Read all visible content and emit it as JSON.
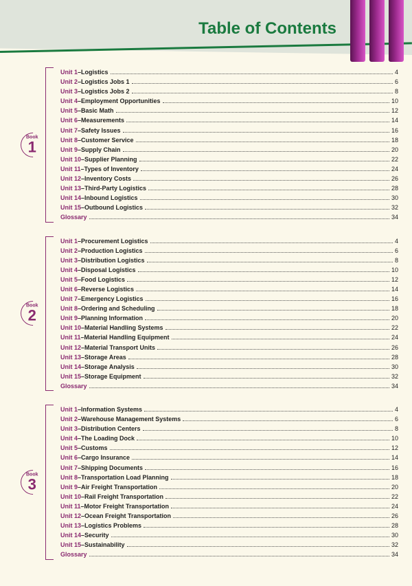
{
  "title": "Table of Contents",
  "colors": {
    "header_bg": "#dfe4db",
    "page_bg": "#fbf8ea",
    "accent_green": "#1a7a3f",
    "accent_purple": "#8a2a70",
    "bar_gradient": [
      "#5b1452",
      "#a02c91",
      "#d856c6"
    ]
  },
  "books": [
    {
      "label": "Book",
      "number": "1",
      "entries": [
        {
          "unit": "Unit 1",
          "title": "Logistics",
          "page": "4"
        },
        {
          "unit": "Unit 2",
          "title": "Logistics Jobs 1",
          "page": "6"
        },
        {
          "unit": "Unit 3",
          "title": "Logistics Jobs 2",
          "page": "8"
        },
        {
          "unit": "Unit 4",
          "title": "Employment Opportunities",
          "page": "10"
        },
        {
          "unit": "Unit 5",
          "title": "Basic Math",
          "page": "12"
        },
        {
          "unit": "Unit 6",
          "title": "Measurements",
          "page": "14"
        },
        {
          "unit": "Unit 7",
          "title": "Safety Issues",
          "page": "16"
        },
        {
          "unit": "Unit 8",
          "title": "Customer Service",
          "page": "18"
        },
        {
          "unit": "Unit 9",
          "title": "Supply Chain",
          "page": "20"
        },
        {
          "unit": "Unit 10",
          "title": "Supplier Planning",
          "page": "22"
        },
        {
          "unit": "Unit 11",
          "title": "Types of Inventory",
          "page": "24"
        },
        {
          "unit": "Unit 12",
          "title": "Inventory Costs",
          "page": "26"
        },
        {
          "unit": "Unit 13",
          "title": "Third-Party Logistics",
          "page": "28"
        },
        {
          "unit": "Unit 14",
          "title": "Inbound Logistics",
          "page": "30"
        },
        {
          "unit": "Unit 15",
          "title": "Outbound Logistics",
          "page": "32"
        },
        {
          "unit": "Glossary",
          "title": "",
          "page": "34"
        }
      ]
    },
    {
      "label": "Book",
      "number": "2",
      "entries": [
        {
          "unit": "Unit 1",
          "title": "Procurement Logistics",
          "page": "4"
        },
        {
          "unit": "Unit 2",
          "title": "Production Logistics",
          "page": "6"
        },
        {
          "unit": "Unit 3",
          "title": "Distribution Logistics",
          "page": "8"
        },
        {
          "unit": "Unit 4",
          "title": "Disposal Logistics",
          "page": "10"
        },
        {
          "unit": "Unit 5",
          "title": "Food Logistics",
          "page": "12"
        },
        {
          "unit": "Unit 6",
          "title": "Reverse Logistics",
          "page": "14"
        },
        {
          "unit": "Unit 7",
          "title": "Emergency Logistics",
          "page": "16"
        },
        {
          "unit": "Unit 8",
          "title": "Ordering and Scheduling",
          "page": "18"
        },
        {
          "unit": "Unit 9",
          "title": "Planning Information",
          "page": "20"
        },
        {
          "unit": "Unit 10",
          "title": "Material Handling Systems",
          "page": "22"
        },
        {
          "unit": "Unit 11",
          "title": "Material Handling Equipment",
          "page": "24"
        },
        {
          "unit": "Unit 12",
          "title": "Material Transport Units",
          "page": "26"
        },
        {
          "unit": "Unit 13",
          "title": "Storage Areas",
          "page": "28"
        },
        {
          "unit": "Unit 14",
          "title": "Storage Analysis",
          "page": "30"
        },
        {
          "unit": "Unit 15",
          "title": "Storage Equipment",
          "page": "32"
        },
        {
          "unit": "Glossary",
          "title": "",
          "page": "34"
        }
      ]
    },
    {
      "label": "Book",
      "number": "3",
      "entries": [
        {
          "unit": "Unit 1",
          "title": "Information Systems",
          "page": "4"
        },
        {
          "unit": "Unit 2",
          "title": "Warehouse Management Systems",
          "page": "6"
        },
        {
          "unit": "Unit 3",
          "title": "Distribution Centers",
          "page": "8"
        },
        {
          "unit": "Unit 4",
          "title": "The Loading Dock",
          "page": "10"
        },
        {
          "unit": "Unit 5",
          "title": "Customs",
          "page": "12"
        },
        {
          "unit": "Unit 6",
          "title": "Cargo Insurance",
          "page": "14"
        },
        {
          "unit": "Unit 7",
          "title": "Shipping Documents",
          "page": "16"
        },
        {
          "unit": "Unit 8",
          "title": "Transportation Load Planning",
          "page": "18"
        },
        {
          "unit": "Unit 9",
          "title": "Air Freight Transportation",
          "page": "20"
        },
        {
          "unit": "Unit 10",
          "title": "Rail Freight Transportation",
          "page": "22"
        },
        {
          "unit": "Unit 11",
          "title": "Motor Freight Transportation",
          "page": "24"
        },
        {
          "unit": "Unit 12",
          "title": "Ocean Freight Transportation",
          "page": "26"
        },
        {
          "unit": "Unit 13",
          "title": "Logistics Problems",
          "page": "28"
        },
        {
          "unit": "Unit 14",
          "title": "Security",
          "page": "30"
        },
        {
          "unit": "Unit 15",
          "title": "Sustainability",
          "page": "32"
        },
        {
          "unit": "Glossary",
          "title": "",
          "page": "34"
        }
      ]
    }
  ]
}
